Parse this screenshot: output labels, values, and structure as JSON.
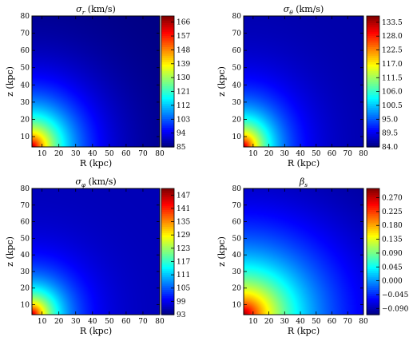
{
  "chart_data": [
    {
      "type": "heatmap",
      "title": "σ",
      "title_sub": "r",
      "title_suffix": " (km/s)",
      "xlabel": "R (kpc)",
      "ylabel": "z (kpc)",
      "xlim": [
        4,
        80
      ],
      "ylim": [
        4,
        80
      ],
      "xticks": [
        "10",
        "20",
        "30",
        "40",
        "50",
        "60",
        "70",
        "80"
      ],
      "yticks": [
        "10",
        "20",
        "30",
        "40",
        "50",
        "60",
        "70",
        "80"
      ],
      "colorbar": {
        "ticks": [
          "85",
          "94",
          "103",
          "112",
          "121",
          "130",
          "139",
          "148",
          "157",
          "166"
        ],
        "min": 85,
        "max": 170
      },
      "surface": {
        "hot_corner": "bottom-left",
        "corner_value": 166,
        "decay_scale_kpc": 20,
        "floor_value": 85,
        "shape": "radial"
      }
    },
    {
      "type": "heatmap",
      "title": "σ",
      "title_sub": "θ",
      "title_suffix": " (km/s)",
      "xlabel": "R (kpc)",
      "ylabel": "z (kpc)",
      "xlim": [
        4,
        80
      ],
      "ylim": [
        4,
        80
      ],
      "xticks": [
        "10",
        "20",
        "30",
        "40",
        "50",
        "60",
        "70",
        "80"
      ],
      "yticks": [
        "10",
        "20",
        "30",
        "40",
        "50",
        "60",
        "70",
        "80"
      ],
      "colorbar": {
        "ticks": [
          "84.0",
          "89.5",
          "95.0",
          "100.5",
          "106.0",
          "111.5",
          "117.0",
          "122.5",
          "128.0",
          "133.5"
        ],
        "min": 84,
        "max": 136
      },
      "surface": {
        "hot_corner": "bottom-left",
        "corner_value": 134,
        "decay_scale_kpc": 17,
        "floor_value": 86,
        "shape": "radial"
      }
    },
    {
      "type": "heatmap",
      "title": "σ",
      "title_sub": "φ",
      "title_suffix": " (km/s)",
      "xlabel": "R (kpc)",
      "ylabel": "z (kpc)",
      "xlim": [
        4,
        80
      ],
      "ylim": [
        4,
        80
      ],
      "xticks": [
        "10",
        "20",
        "30",
        "40",
        "50",
        "60",
        "70",
        "80"
      ],
      "yticks": [
        "10",
        "20",
        "30",
        "40",
        "50",
        "60",
        "70",
        "80"
      ],
      "colorbar": {
        "ticks": [
          "93",
          "99",
          "105",
          "111",
          "117",
          "123",
          "129",
          "135",
          "141",
          "147"
        ],
        "min": 93,
        "max": 150
      },
      "surface": {
        "hot_corner": "bottom-left",
        "corner_value": 148,
        "decay_scale_kpc": 15,
        "floor_value": 96,
        "shape": "radial"
      }
    },
    {
      "type": "heatmap",
      "title": "β",
      "title_sub": "s",
      "title_suffix": "",
      "xlabel": "R (kpc)",
      "ylabel": "z (kpc)",
      "xlim": [
        4,
        80
      ],
      "ylim": [
        4,
        80
      ],
      "xticks": [
        "10",
        "20",
        "30",
        "40",
        "50",
        "60",
        "70",
        "80"
      ],
      "yticks": [
        "10",
        "20",
        "30",
        "40",
        "50",
        "60",
        "70",
        "80"
      ],
      "colorbar": {
        "ticks": [
          "−0.090",
          "−0.045",
          "0.000",
          "0.045",
          "0.090",
          "0.135",
          "0.180",
          "0.225",
          "0.270"
        ],
        "min": -0.11,
        "max": 0.3
      },
      "surface": {
        "hot_corner": "bottom-left",
        "corner_value": 0.29,
        "decay_scale_kpc": 30,
        "floor_value": -0.11,
        "shape": "radial"
      }
    }
  ]
}
